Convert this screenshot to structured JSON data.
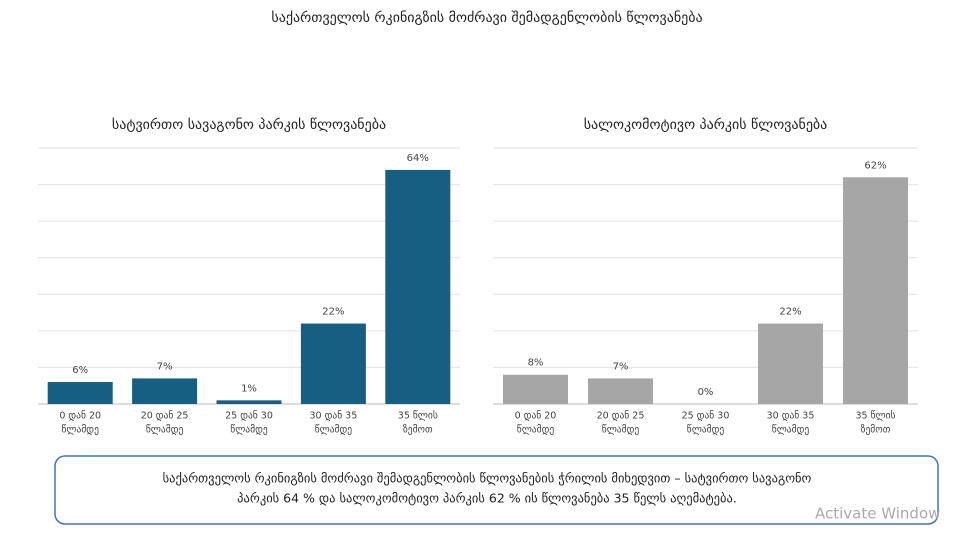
{
  "title": "საქართველოს რკინიგზის მოძრავი შემადგენლობის წლოვანება",
  "chart_data": [
    {
      "type": "bar",
      "title": "სატვირთო სავაგონო პარკის წლოვანება",
      "categories": [
        [
          "0 დან 20",
          "წლამდე"
        ],
        [
          "20 დან 25",
          "წლამდე"
        ],
        [
          "25 დან 30",
          "წლამდე"
        ],
        [
          "30 დან 35",
          "წლამდე"
        ],
        [
          "35 წლის",
          "ზემოთ"
        ]
      ],
      "values": [
        6,
        7,
        1,
        22,
        64
      ],
      "value_labels": [
        "6%",
        "7%",
        "1%",
        "22%",
        "64%"
      ],
      "color": "#175e83",
      "ylim": [
        0,
        70
      ],
      "yticks": [
        0,
        10,
        20,
        30,
        40,
        50,
        60,
        70
      ],
      "grid": true
    },
    {
      "type": "bar",
      "title": "სალოკომოტივო პარკის წლოვანება",
      "categories": [
        [
          "0 დან 20",
          "წლამდე"
        ],
        [
          "20 დან 25",
          "წლამდე"
        ],
        [
          "25 დან 30",
          "წლამდე"
        ],
        [
          "30 დან 35",
          "წლამდე"
        ],
        [
          "35 წლის",
          "ზემოთ"
        ]
      ],
      "values": [
        8,
        7,
        0,
        22,
        62
      ],
      "value_labels": [
        "8%",
        "7%",
        "0%",
        "22%",
        "62%"
      ],
      "color": "#a6a6a6",
      "ylim": [
        0,
        70
      ],
      "yticks": [
        0,
        10,
        20,
        30,
        40,
        50,
        60,
        70
      ],
      "grid": true
    }
  ],
  "note": [
    "საქართველოს რკინიგზის  მოძრავი შემადგენლობის წლოვანების ჭრილის მიხედვით – სატვირთო სავაგონო",
    "პარკის 64 %  და სალოკომოტივო პარკის 62 % ის წლოვანება 35 წელს აღემატება."
  ],
  "watermark": "Activate Window"
}
